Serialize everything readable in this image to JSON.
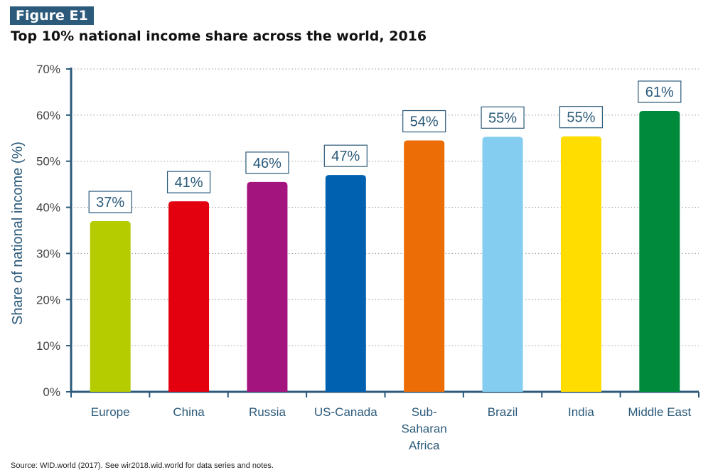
{
  "figure": {
    "label": "Figure E1",
    "title": "Top 10% national income share across the world, 2016",
    "source": "Source: WID.world (2017). See wir2018.wid.world for data series and notes."
  },
  "chart_data": {
    "type": "bar",
    "title": "Top 10% national income share across the world, 2016",
    "ylabel": "Share of national income (%)",
    "xlabel": "",
    "ylim": [
      0,
      70
    ],
    "yticks": [
      "0%",
      "10%",
      "20%",
      "30%",
      "40%",
      "50%",
      "60%",
      "70%"
    ],
    "grid": "horizontal dotted",
    "categories": [
      [
        "Europe"
      ],
      [
        "China"
      ],
      [
        "Russia"
      ],
      [
        "US-Canada"
      ],
      [
        "Sub-",
        "Saharan",
        "Africa"
      ],
      [
        "Brazil"
      ],
      [
        "India"
      ],
      [
        "Middle East"
      ]
    ],
    "values": [
      37,
      41,
      46,
      47,
      54,
      55,
      55,
      61
    ],
    "plotted_values": [
      37.0,
      41.3,
      45.5,
      47.0,
      54.5,
      55.3,
      55.4,
      60.9
    ],
    "data_labels": [
      "37%",
      "41%",
      "46%",
      "47%",
      "54%",
      "55%",
      "55%",
      "61%"
    ],
    "colors": [
      "#b5cc00",
      "#e3000f",
      "#a3147f",
      "#0061b0",
      "#ec6d05",
      "#84cdf0",
      "#ffdd00",
      "#008a3c"
    ],
    "axis_color": "#2b5a7a",
    "label_box_border": "#2b5a7a"
  }
}
